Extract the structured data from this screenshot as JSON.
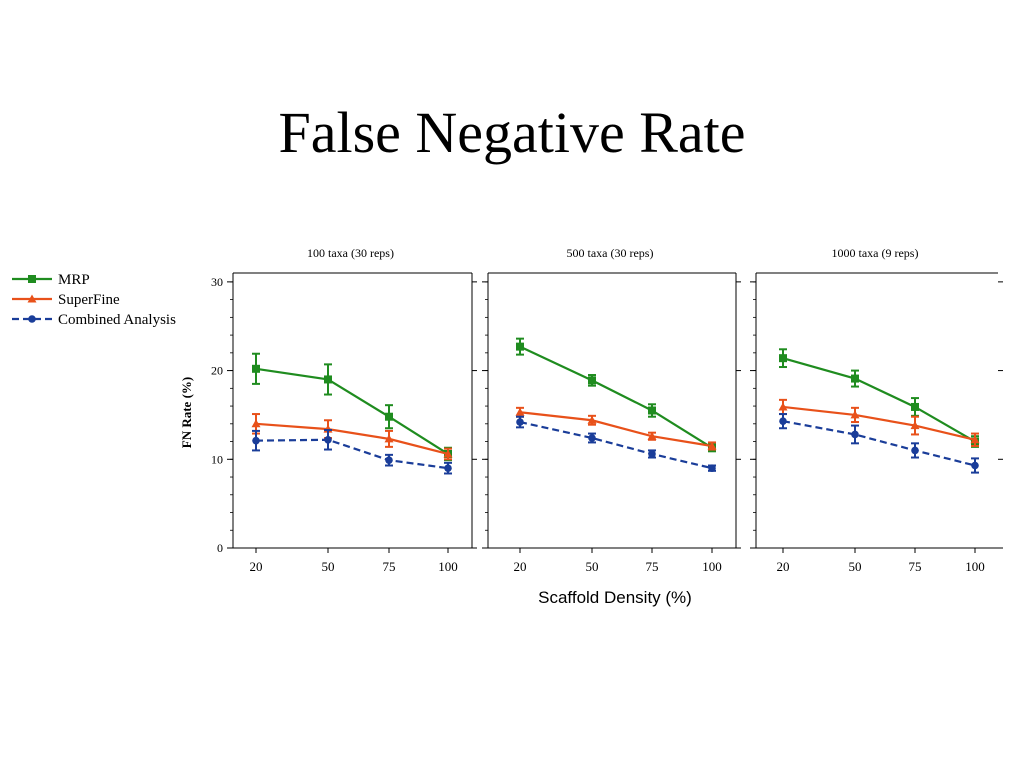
{
  "slide": {
    "title": "False Negative Rate",
    "xlabel": "Scaffold Density (%)"
  },
  "colors": {
    "MRP": "#1f8c1f",
    "SuperFine": "#e8511a",
    "Combined Analysis": "#1a3d99"
  },
  "chart_data": [
    {
      "type": "line",
      "title": "100 taxa (30 reps)",
      "ylabel": "FN Rate (%)",
      "xlabel": "",
      "categories": [
        "20",
        "50",
        "75",
        "100"
      ],
      "ylim": [
        0,
        31
      ],
      "yticks": [
        0,
        10,
        20,
        30
      ],
      "legend": "left",
      "series": [
        {
          "name": "MRP",
          "marker": "square",
          "dashed": false,
          "values": [
            20.2,
            19.0,
            14.8,
            10.6
          ],
          "errors": [
            1.7,
            1.7,
            1.3,
            0.7
          ]
        },
        {
          "name": "SuperFine",
          "marker": "triangle",
          "dashed": false,
          "values": [
            14.0,
            13.4,
            12.3,
            10.6
          ],
          "errors": [
            1.1,
            1.0,
            0.9,
            0.6
          ]
        },
        {
          "name": "Combined Analysis",
          "marker": "circle",
          "dashed": true,
          "values": [
            12.1,
            12.2,
            9.9,
            9.0
          ],
          "errors": [
            1.1,
            1.1,
            0.6,
            0.6
          ]
        }
      ]
    },
    {
      "type": "line",
      "title": "500 taxa (30 reps)",
      "ylabel": "",
      "xlabel": "",
      "categories": [
        "20",
        "50",
        "75",
        "100"
      ],
      "ylim": [
        0,
        31
      ],
      "yticks": [
        0,
        10,
        20,
        30
      ],
      "series": [
        {
          "name": "MRP",
          "marker": "square",
          "dashed": false,
          "values": [
            22.7,
            18.9,
            15.5,
            11.3
          ],
          "errors": [
            0.9,
            0.6,
            0.7,
            0.4
          ]
        },
        {
          "name": "SuperFine",
          "marker": "triangle",
          "dashed": false,
          "values": [
            15.3,
            14.4,
            12.6,
            11.5
          ],
          "errors": [
            0.5,
            0.5,
            0.4,
            0.4
          ]
        },
        {
          "name": "Combined Analysis",
          "marker": "circle",
          "dashed": true,
          "values": [
            14.2,
            12.4,
            10.6,
            9.0
          ],
          "errors": [
            0.6,
            0.5,
            0.4,
            0.3
          ]
        }
      ]
    },
    {
      "type": "line",
      "title": "1000 taxa (9 reps)",
      "ylabel": "",
      "xlabel": "",
      "categories": [
        "20",
        "50",
        "75",
        "100"
      ],
      "ylim": [
        0,
        31
      ],
      "yticks": [
        0,
        10,
        20,
        30
      ],
      "series": [
        {
          "name": "MRP",
          "marker": "square",
          "dashed": false,
          "values": [
            21.4,
            19.1,
            15.9,
            12.0
          ],
          "errors": [
            1.0,
            0.9,
            1.0,
            0.6
          ]
        },
        {
          "name": "SuperFine",
          "marker": "triangle",
          "dashed": false,
          "values": [
            15.9,
            15.0,
            13.8,
            12.2
          ],
          "errors": [
            0.8,
            0.8,
            1.0,
            0.7
          ]
        },
        {
          "name": "Combined Analysis",
          "marker": "circle",
          "dashed": true,
          "values": [
            14.3,
            12.8,
            11.0,
            9.3
          ],
          "errors": [
            0.8,
            1.0,
            0.8,
            0.8
          ]
        }
      ]
    }
  ]
}
